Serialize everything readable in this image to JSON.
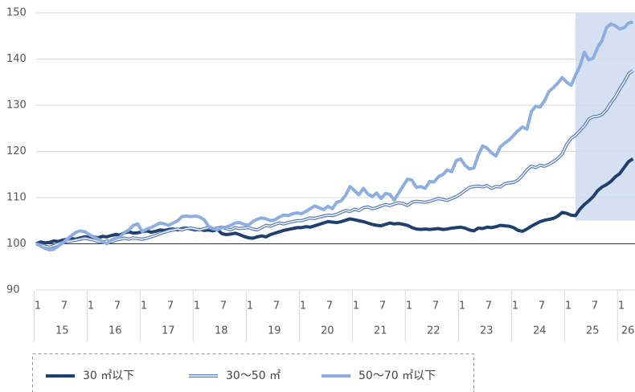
{
  "chart_data": {
    "type": "line",
    "categories": [
      "1",
      null,
      null,
      null,
      null,
      null,
      "7",
      null,
      null,
      null,
      null,
      null,
      "1",
      null,
      null,
      null,
      null,
      null,
      "7",
      null,
      null,
      null,
      null,
      null,
      "1",
      null,
      null,
      null,
      null,
      null,
      "7",
      null,
      null,
      null,
      null,
      null,
      "1",
      null,
      null,
      null,
      null,
      null,
      "7",
      null,
      null,
      null,
      null,
      null,
      "1",
      null,
      null,
      null,
      null,
      null,
      "7",
      null,
      null,
      null,
      null,
      null,
      "1",
      null,
      null,
      null,
      null,
      null,
      "7",
      null,
      null,
      null,
      null,
      null,
      "1",
      null,
      null,
      null,
      null,
      null,
      "7",
      null,
      null,
      null,
      null,
      null,
      "1",
      null,
      null,
      null,
      null,
      null,
      "7",
      null,
      null,
      null,
      null,
      null,
      "1",
      null,
      null,
      null,
      null,
      null,
      "7",
      null,
      null,
      null,
      null,
      null,
      "1",
      null,
      null,
      null,
      null,
      null,
      "7",
      null,
      null,
      null,
      null,
      null,
      "1",
      null,
      null,
      null,
      null,
      null,
      "7",
      null,
      null,
      null,
      null,
      null,
      "1",
      null,
      null,
      null
    ],
    "year_labels": [
      "15",
      "16",
      "17",
      "18",
      "19",
      "20",
      "21",
      "22",
      "23",
      "24",
      "25",
      "26"
    ],
    "ylim": [
      90,
      150
    ],
    "yticks": [
      90,
      100,
      110,
      120,
      130,
      140,
      150
    ],
    "grid": true,
    "baseline": 100,
    "shade": {
      "x_from": 122,
      "y_from": 105,
      "color": "#d6e0f3"
    },
    "series": [
      {
        "name": "30 ㎡以下",
        "color": "#1f3f6e",
        "style": "solid",
        "values": [
          100,
          100.4,
          100.2,
          100.3,
          100.6,
          100.5,
          100.8,
          101,
          101.1,
          101,
          101.3,
          101.5,
          101.4,
          101.5,
          101.3,
          101.6,
          101.5,
          101.8,
          102,
          101.9,
          102.4,
          102.6,
          102.3,
          102.4,
          102.6,
          102.8,
          102.5,
          102.7,
          103,
          102.9,
          103.1,
          103.2,
          103,
          103.3,
          103.4,
          103.2,
          103,
          103.1,
          102.9,
          103,
          102.8,
          103.1,
          102.2,
          102,
          102.1,
          102.3,
          102,
          101.6,
          101.3,
          101.2,
          101.5,
          101.7,
          101.5,
          102,
          102.3,
          102.6,
          102.9,
          103.1,
          103.3,
          103.5,
          103.5,
          103.7,
          103.6,
          103.9,
          104.2,
          104.5,
          104.8,
          104.7,
          104.6,
          104.8,
          105.1,
          105.4,
          105.2,
          105,
          104.8,
          104.5,
          104.2,
          104,
          103.9,
          104.2,
          104.5,
          104.3,
          104.4,
          104.2,
          104,
          103.5,
          103.2,
          103.1,
          103.2,
          103.1,
          103.2,
          103.3,
          103.1,
          103.2,
          103.4,
          103.5,
          103.6,
          103.4,
          103,
          102.8,
          103.4,
          103.3,
          103.6,
          103.5,
          103.7,
          104,
          103.9,
          103.8,
          103.5,
          102.9,
          102.7,
          103.2,
          103.8,
          104.3,
          104.8,
          105.1,
          105.3,
          105.5,
          106,
          106.8,
          106.6,
          106.2,
          106.1,
          107.5,
          108.5,
          109.3,
          110.2,
          111.5,
          112.3,
          112.8,
          113.5,
          114.5,
          115.2,
          116.5,
          117.8,
          118.4
        ]
      },
      {
        "name": "30〜50 ㎡",
        "color": "#5b7fc4",
        "style": "double",
        "values": [
          100,
          99.8,
          99.5,
          99.3,
          99.6,
          100,
          100.3,
          100.5,
          100.6,
          100.8,
          101,
          101.2,
          101,
          100.8,
          100.5,
          100.3,
          100.6,
          100.4,
          100.8,
          101,
          101.2,
          101,
          101.3,
          101.1,
          101,
          101.2,
          101.5,
          101.8,
          102.2,
          102.5,
          102.8,
          103,
          103.2,
          103,
          103.3,
          103.4,
          103.2,
          103,
          103.3,
          103.5,
          103.2,
          103.4,
          103.6,
          103.3,
          103,
          103.5,
          103.3,
          103.4,
          103.5,
          103.2,
          103,
          103.5,
          104,
          103.8,
          104.2,
          104.5,
          104.3,
          104.6,
          104.8,
          105,
          105,
          105.3,
          105.6,
          105.5,
          105.8,
          106,
          106.2,
          106.1,
          106.4,
          106.8,
          107.2,
          107,
          107.5,
          107.2,
          107.8,
          108,
          107.6,
          107.8,
          108.2,
          108.5,
          108.3,
          108.6,
          108.9,
          108.7,
          108.3,
          109,
          109.2,
          109.1,
          109,
          109.2,
          109.5,
          109.8,
          109.6,
          109.4,
          109.8,
          110.2,
          110.8,
          111.5,
          112.2,
          112.4,
          112.5,
          112.3,
          112.6,
          112,
          112.4,
          112.3,
          113,
          113.2,
          113.3,
          113.8,
          114.8,
          116,
          116.8,
          116.5,
          117,
          116.8,
          117.2,
          117.8,
          118.5,
          119.5,
          121.5,
          122.8,
          123.5,
          124.5,
          125.5,
          127,
          127.5,
          127.6,
          128,
          129,
          130.5,
          131.8,
          133.5,
          135,
          136.8,
          137.5
        ]
      },
      {
        "name": "50〜70 ㎡以下",
        "color": "#8eaee0",
        "style": "solid",
        "values": [
          100,
          99.5,
          99,
          98.7,
          98.8,
          99.5,
          100.2,
          101,
          101.8,
          102.5,
          102.8,
          102.6,
          102,
          101.5,
          101,
          100.5,
          100,
          100.8,
          101.2,
          101.5,
          102.5,
          103,
          104,
          104.3,
          102.6,
          103.2,
          103.5,
          104,
          104.5,
          104.3,
          104,
          104.5,
          105,
          105.9,
          106,
          105.9,
          106,
          105.8,
          105.2,
          103.8,
          103.3,
          103,
          103.5,
          103.6,
          104,
          104.5,
          104.6,
          104.2,
          104,
          104.8,
          105.3,
          105.6,
          105.4,
          105,
          105.2,
          105.8,
          106.2,
          106.1,
          106.5,
          106.7,
          106.5,
          107,
          107.6,
          108.2,
          107.8,
          107.4,
          108.1,
          107.6,
          109,
          109.3,
          110.5,
          112.4,
          111.5,
          110.6,
          112,
          110.8,
          110.2,
          111,
          109.8,
          110.9,
          110.7,
          109.5,
          111,
          112.5,
          114,
          113.8,
          112.2,
          112.4,
          112,
          113.5,
          113.4,
          114.5,
          115,
          116,
          115.6,
          118,
          118.4,
          117,
          116.2,
          116.4,
          119.2,
          121.2,
          120.7,
          119.7,
          119,
          121,
          121.8,
          122.5,
          123.5,
          124.5,
          125.3,
          124.8,
          128.6,
          129.8,
          129.6,
          131,
          133,
          133.8,
          134.8,
          136,
          135,
          134.3,
          136.5,
          138.5,
          141.5,
          139.8,
          140.2,
          142.5,
          144,
          146.8,
          147.6,
          147.2,
          146.5,
          146.8,
          147.8,
          148
        ]
      }
    ]
  }
}
